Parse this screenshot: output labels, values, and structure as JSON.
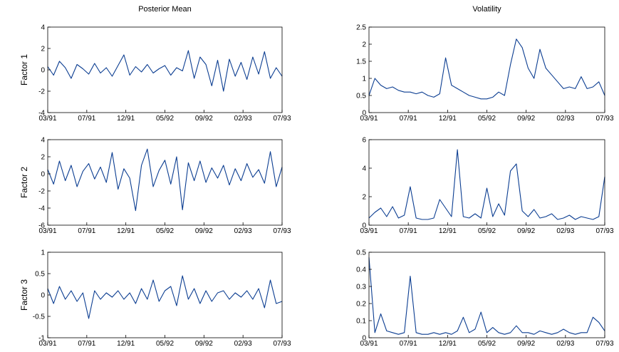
{
  "chart_data": [
    {
      "type": "line",
      "title": "Posterior Mean",
      "ylabel": "Factor 1",
      "color": "#0b3d91",
      "x": [
        0,
        15,
        30,
        45,
        60,
        75,
        90,
        105,
        120,
        135,
        150,
        165,
        180,
        195,
        210,
        225,
        240,
        255,
        270,
        285,
        300,
        315,
        330,
        345,
        360,
        375,
        390,
        405,
        420,
        435,
        450,
        465,
        480,
        495,
        510,
        525,
        540,
        555,
        570,
        585,
        600
      ],
      "values": [
        0.3,
        -0.5,
        0.8,
        0.2,
        -0.8,
        0.5,
        0.1,
        -0.4,
        0.6,
        -0.3,
        0.2,
        -0.6,
        0.4,
        1.4,
        -0.5,
        0.3,
        -0.2,
        0.5,
        -0.3,
        0.1,
        0.4,
        -0.5,
        0.2,
        -0.1,
        1.8,
        -0.8,
        1.2,
        0.5,
        -1.5,
        0.9,
        -2.0,
        1.0,
        -0.6,
        0.7,
        -0.9,
        1.2,
        -0.4,
        1.7,
        -0.8,
        0.2,
        -0.6
      ],
      "xlim": [
        0,
        600
      ],
      "xticks": [
        {
          "value": 0,
          "label": "03/91"
        },
        {
          "value": 100,
          "label": "07/91"
        },
        {
          "value": 200,
          "label": "12/91"
        },
        {
          "value": 300,
          "label": "05/92"
        },
        {
          "value": 400,
          "label": "09/92"
        },
        {
          "value": 500,
          "label": "02/93"
        },
        {
          "value": 600,
          "label": "07/93"
        }
      ],
      "ylim": [
        -4,
        4
      ],
      "yticks": [
        -4,
        -2,
        0,
        2,
        4
      ]
    },
    {
      "type": "line",
      "title": "Volatility",
      "color": "#0b3d91",
      "x": [
        0,
        15,
        30,
        45,
        60,
        75,
        90,
        105,
        120,
        135,
        150,
        165,
        180,
        195,
        210,
        225,
        240,
        255,
        270,
        285,
        300,
        315,
        330,
        345,
        360,
        375,
        390,
        405,
        420,
        435,
        450,
        465,
        480,
        495,
        510,
        525,
        540,
        555,
        570,
        585,
        600
      ],
      "values": [
        0.5,
        1.0,
        0.8,
        0.7,
        0.75,
        0.65,
        0.6,
        0.6,
        0.55,
        0.6,
        0.5,
        0.45,
        0.55,
        1.6,
        0.8,
        0.7,
        0.6,
        0.5,
        0.45,
        0.4,
        0.4,
        0.45,
        0.6,
        0.5,
        1.4,
        2.15,
        1.9,
        1.3,
        1.0,
        1.85,
        1.3,
        1.1,
        0.9,
        0.7,
        0.75,
        0.7,
        1.05,
        0.7,
        0.75,
        0.9,
        0.5
      ],
      "xlim": [
        0,
        600
      ],
      "xticks": [
        {
          "value": 0,
          "label": "03/91"
        },
        {
          "value": 100,
          "label": "07/91"
        },
        {
          "value": 200,
          "label": "12/91"
        },
        {
          "value": 300,
          "label": "05/92"
        },
        {
          "value": 400,
          "label": "09/92"
        },
        {
          "value": 500,
          "label": "02/93"
        },
        {
          "value": 600,
          "label": "07/93"
        }
      ],
      "ylim": [
        0,
        2.5
      ],
      "yticks": [
        0,
        0.5,
        1,
        1.5,
        2,
        2.5
      ]
    },
    {
      "type": "line",
      "ylabel": "Factor 2",
      "color": "#0b3d91",
      "x": [
        0,
        15,
        30,
        45,
        60,
        75,
        90,
        105,
        120,
        135,
        150,
        165,
        180,
        195,
        210,
        225,
        240,
        255,
        270,
        285,
        300,
        315,
        330,
        345,
        360,
        375,
        390,
        405,
        420,
        435,
        450,
        465,
        480,
        495,
        510,
        525,
        540,
        555,
        570,
        585,
        600
      ],
      "values": [
        0.5,
        -1.2,
        1.5,
        -0.8,
        1.0,
        -1.5,
        0.3,
        1.2,
        -0.6,
        0.8,
        -1.0,
        2.5,
        -1.8,
        0.6,
        -0.5,
        -4.3,
        1.0,
        2.9,
        -1.5,
        0.4,
        1.6,
        -1.2,
        2.0,
        -4.2,
        1.3,
        -0.8,
        1.5,
        -1.0,
        0.7,
        -0.5,
        1.0,
        -1.3,
        0.6,
        -0.8,
        1.2,
        -0.4,
        0.5,
        -1.1,
        2.6,
        -1.5,
        0.8
      ],
      "xlim": [
        0,
        600
      ],
      "xticks": [
        {
          "value": 0,
          "label": "03/91"
        },
        {
          "value": 100,
          "label": "07/91"
        },
        {
          "value": 200,
          "label": "12/91"
        },
        {
          "value": 300,
          "label": "05/92"
        },
        {
          "value": 400,
          "label": "09/92"
        },
        {
          "value": 500,
          "label": "02/93"
        },
        {
          "value": 600,
          "label": "07/93"
        }
      ],
      "ylim": [
        -6,
        4
      ],
      "yticks": [
        -6,
        -4,
        -2,
        0,
        2,
        4
      ]
    },
    {
      "type": "line",
      "color": "#0b3d91",
      "x": [
        0,
        15,
        30,
        45,
        60,
        75,
        90,
        105,
        120,
        135,
        150,
        165,
        180,
        195,
        210,
        225,
        240,
        255,
        270,
        285,
        300,
        315,
        330,
        345,
        360,
        375,
        390,
        405,
        420,
        435,
        450,
        465,
        480,
        495,
        510,
        525,
        540,
        555,
        570,
        585,
        600
      ],
      "values": [
        0.5,
        0.9,
        1.2,
        0.6,
        1.3,
        0.5,
        0.7,
        2.7,
        0.5,
        0.4,
        0.4,
        0.5,
        1.8,
        1.2,
        0.6,
        5.3,
        0.6,
        0.5,
        0.8,
        0.5,
        2.6,
        0.6,
        1.5,
        0.7,
        3.8,
        4.3,
        1.0,
        0.6,
        1.1,
        0.5,
        0.6,
        0.8,
        0.4,
        0.5,
        0.7,
        0.4,
        0.6,
        0.5,
        0.4,
        0.6,
        3.4
      ],
      "xlim": [
        0,
        600
      ],
      "xticks": [
        {
          "value": 0,
          "label": "03/91"
        },
        {
          "value": 100,
          "label": "07/91"
        },
        {
          "value": 200,
          "label": "12/91"
        },
        {
          "value": 300,
          "label": "05/92"
        },
        {
          "value": 400,
          "label": "09/92"
        },
        {
          "value": 500,
          "label": "02/93"
        },
        {
          "value": 600,
          "label": "07/93"
        }
      ],
      "ylim": [
        0,
        6
      ],
      "yticks": [
        0,
        2,
        4,
        6
      ]
    },
    {
      "type": "line",
      "ylabel": "Factor 3",
      "color": "#0b3d91",
      "x": [
        0,
        15,
        30,
        45,
        60,
        75,
        90,
        105,
        120,
        135,
        150,
        165,
        180,
        195,
        210,
        225,
        240,
        255,
        270,
        285,
        300,
        315,
        330,
        345,
        360,
        375,
        390,
        405,
        420,
        435,
        450,
        465,
        480,
        495,
        510,
        525,
        540,
        555,
        570,
        585,
        600
      ],
      "values": [
        0.15,
        -0.2,
        0.2,
        -0.1,
        0.1,
        -0.15,
        0.05,
        -0.55,
        0.1,
        -0.1,
        0.05,
        -0.05,
        0.1,
        -0.1,
        0.05,
        -0.2,
        0.15,
        -0.1,
        0.35,
        -0.15,
        0.1,
        0.2,
        -0.25,
        0.45,
        -0.1,
        0.15,
        -0.2,
        0.1,
        -0.15,
        0.05,
        0.1,
        -0.1,
        0.05,
        -0.05,
        0.1,
        -0.1,
        0.15,
        -0.3,
        0.35,
        -0.2,
        -0.15
      ],
      "xlim": [
        0,
        600
      ],
      "xticks": [
        {
          "value": 0,
          "label": "03/91"
        },
        {
          "value": 100,
          "label": "07/91"
        },
        {
          "value": 200,
          "label": "12/91"
        },
        {
          "value": 300,
          "label": "05/92"
        },
        {
          "value": 400,
          "label": "09/92"
        },
        {
          "value": 500,
          "label": "02/93"
        },
        {
          "value": 600,
          "label": "07/93"
        }
      ],
      "ylim": [
        -1,
        1
      ],
      "yticks": [
        -1,
        -0.5,
        0,
        0.5,
        1
      ]
    },
    {
      "type": "line",
      "color": "#0b3d91",
      "x": [
        0,
        15,
        30,
        45,
        60,
        75,
        90,
        105,
        120,
        135,
        150,
        165,
        180,
        195,
        210,
        225,
        240,
        255,
        270,
        285,
        300,
        315,
        330,
        345,
        360,
        375,
        390,
        405,
        420,
        435,
        450,
        465,
        480,
        495,
        510,
        525,
        540,
        555,
        570,
        585,
        600
      ],
      "values": [
        0.47,
        0.03,
        0.14,
        0.04,
        0.03,
        0.02,
        0.03,
        0.36,
        0.03,
        0.02,
        0.02,
        0.03,
        0.02,
        0.03,
        0.02,
        0.04,
        0.12,
        0.03,
        0.05,
        0.15,
        0.03,
        0.06,
        0.03,
        0.02,
        0.03,
        0.07,
        0.03,
        0.03,
        0.02,
        0.04,
        0.03,
        0.02,
        0.03,
        0.05,
        0.03,
        0.02,
        0.03,
        0.03,
        0.12,
        0.09,
        0.04
      ],
      "xlim": [
        0,
        600
      ],
      "xticks": [
        {
          "value": 0,
          "label": "03/91"
        },
        {
          "value": 100,
          "label": "07/91"
        },
        {
          "value": 200,
          "label": "12/91"
        },
        {
          "value": 300,
          "label": "05/92"
        },
        {
          "value": 400,
          "label": "09/92"
        },
        {
          "value": 500,
          "label": "02/93"
        },
        {
          "value": 600,
          "label": "07/93"
        }
      ],
      "ylim": [
        0,
        0.5
      ],
      "yticks": [
        0,
        0.1,
        0.2,
        0.3,
        0.4,
        0.5
      ]
    }
  ]
}
